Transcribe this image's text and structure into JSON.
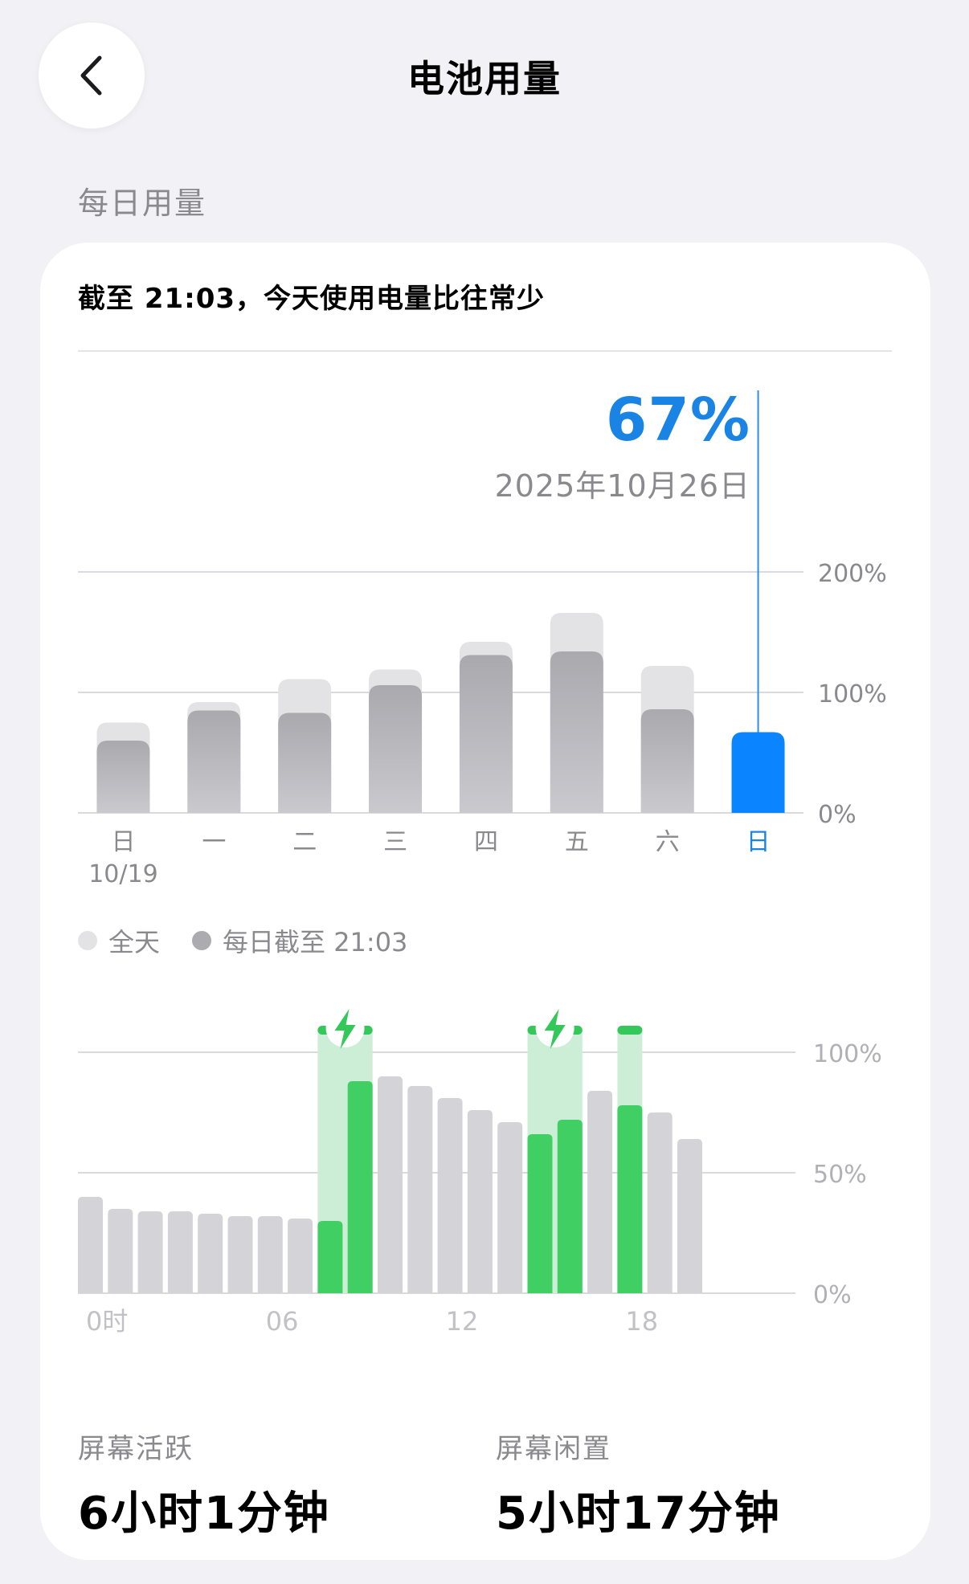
{
  "header": {
    "title": "电池用量",
    "back_icon": "chevron-left-icon"
  },
  "section": {
    "label": "每日用量"
  },
  "card": {
    "summary": "截至 21:03，今天使用电量比往常少",
    "selected": {
      "percent": "67%",
      "date": "2025年10月26日"
    }
  },
  "colors": {
    "accent_blue": "#1a84e4",
    "bar_today": "#0a84ff",
    "bar_gray": "#ababb0",
    "bar_light": "#e3e3e6",
    "charging_green": "#34c759",
    "charging_bg": "#cdeed6"
  },
  "legend": {
    "full_day": "全天",
    "until_now": "每日截至 21:03"
  },
  "chart_data": [
    {
      "type": "bar",
      "categories": [
        "日",
        "一",
        "二",
        "三",
        "四",
        "五",
        "六",
        "日"
      ],
      "first_date": "10/19",
      "y_ticks": [
        "200%",
        "100%",
        "0%"
      ],
      "ylim": [
        0,
        200
      ],
      "selected_index": 7,
      "series": [
        {
          "name": "全天",
          "values": [
            75,
            92,
            111,
            119,
            142,
            166,
            122,
            null
          ]
        },
        {
          "name": "每日截至 21:03",
          "values": [
            60,
            85,
            83,
            106,
            131,
            134,
            86,
            67
          ]
        }
      ]
    },
    {
      "type": "bar",
      "x_ticks": [
        "0时",
        "06",
        "12",
        "18"
      ],
      "y_ticks": [
        "100%",
        "50%",
        "0%"
      ],
      "ylim": [
        0,
        100
      ],
      "values": [
        40,
        35,
        34,
        34,
        33,
        32,
        32,
        31,
        30,
        88,
        90,
        86,
        81,
        76,
        71,
        66,
        72,
        84,
        78,
        75,
        64
      ],
      "charging_hours": [
        8,
        9,
        15,
        16,
        18
      ],
      "charging_icon_hours": [
        8,
        15
      ]
    }
  ],
  "stats": {
    "screen_on_label": "屏幕活跃",
    "screen_on_value": "6小时1分钟",
    "screen_off_label": "屏幕闲置",
    "screen_off_value": "5小时17分钟"
  }
}
